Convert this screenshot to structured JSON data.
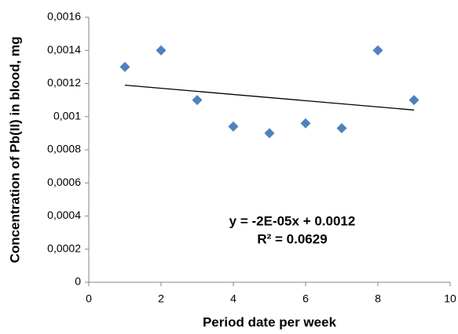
{
  "chart_data": {
    "type": "scatter",
    "x_label": "Period date per week",
    "y_label": "Concentration of Pb(II) in blood, mg",
    "x": [
      1,
      2,
      3,
      4,
      5,
      6,
      7,
      8,
      9
    ],
    "values": [
      0.0013,
      0.0014,
      0.0011,
      0.00094,
      0.0009,
      0.00096,
      0.00093,
      0.0014,
      0.0011
    ],
    "color": "#4f81bd",
    "trendline": {
      "x": [
        1,
        9
      ],
      "values": [
        0.00119,
        0.00104
      ],
      "color": "#000000"
    },
    "annotations": [
      "y = -2E-05x + 0.0012",
      "R² = 0.0629"
    ],
    "xlim": [
      0,
      10
    ],
    "xticks": [
      0,
      2,
      4,
      6,
      8,
      10
    ],
    "ylim": [
      0,
      0.0016
    ],
    "yticks": [
      0,
      {
        "value": 0.0002,
        "label": "0,0002"
      },
      {
        "value": 0.0004,
        "label": "0,0004"
      },
      {
        "value": 0.0006,
        "label": "0,0006"
      },
      {
        "value": 0.0008,
        "label": "0,0008"
      },
      {
        "value": 0.001,
        "label": "0,001"
      },
      {
        "value": 0.0012,
        "label": "0,0012"
      },
      {
        "value": 0.0014,
        "label": "0,0014"
      },
      {
        "value": 0.0016,
        "label": "0,0016"
      }
    ],
    "grid": false
  }
}
